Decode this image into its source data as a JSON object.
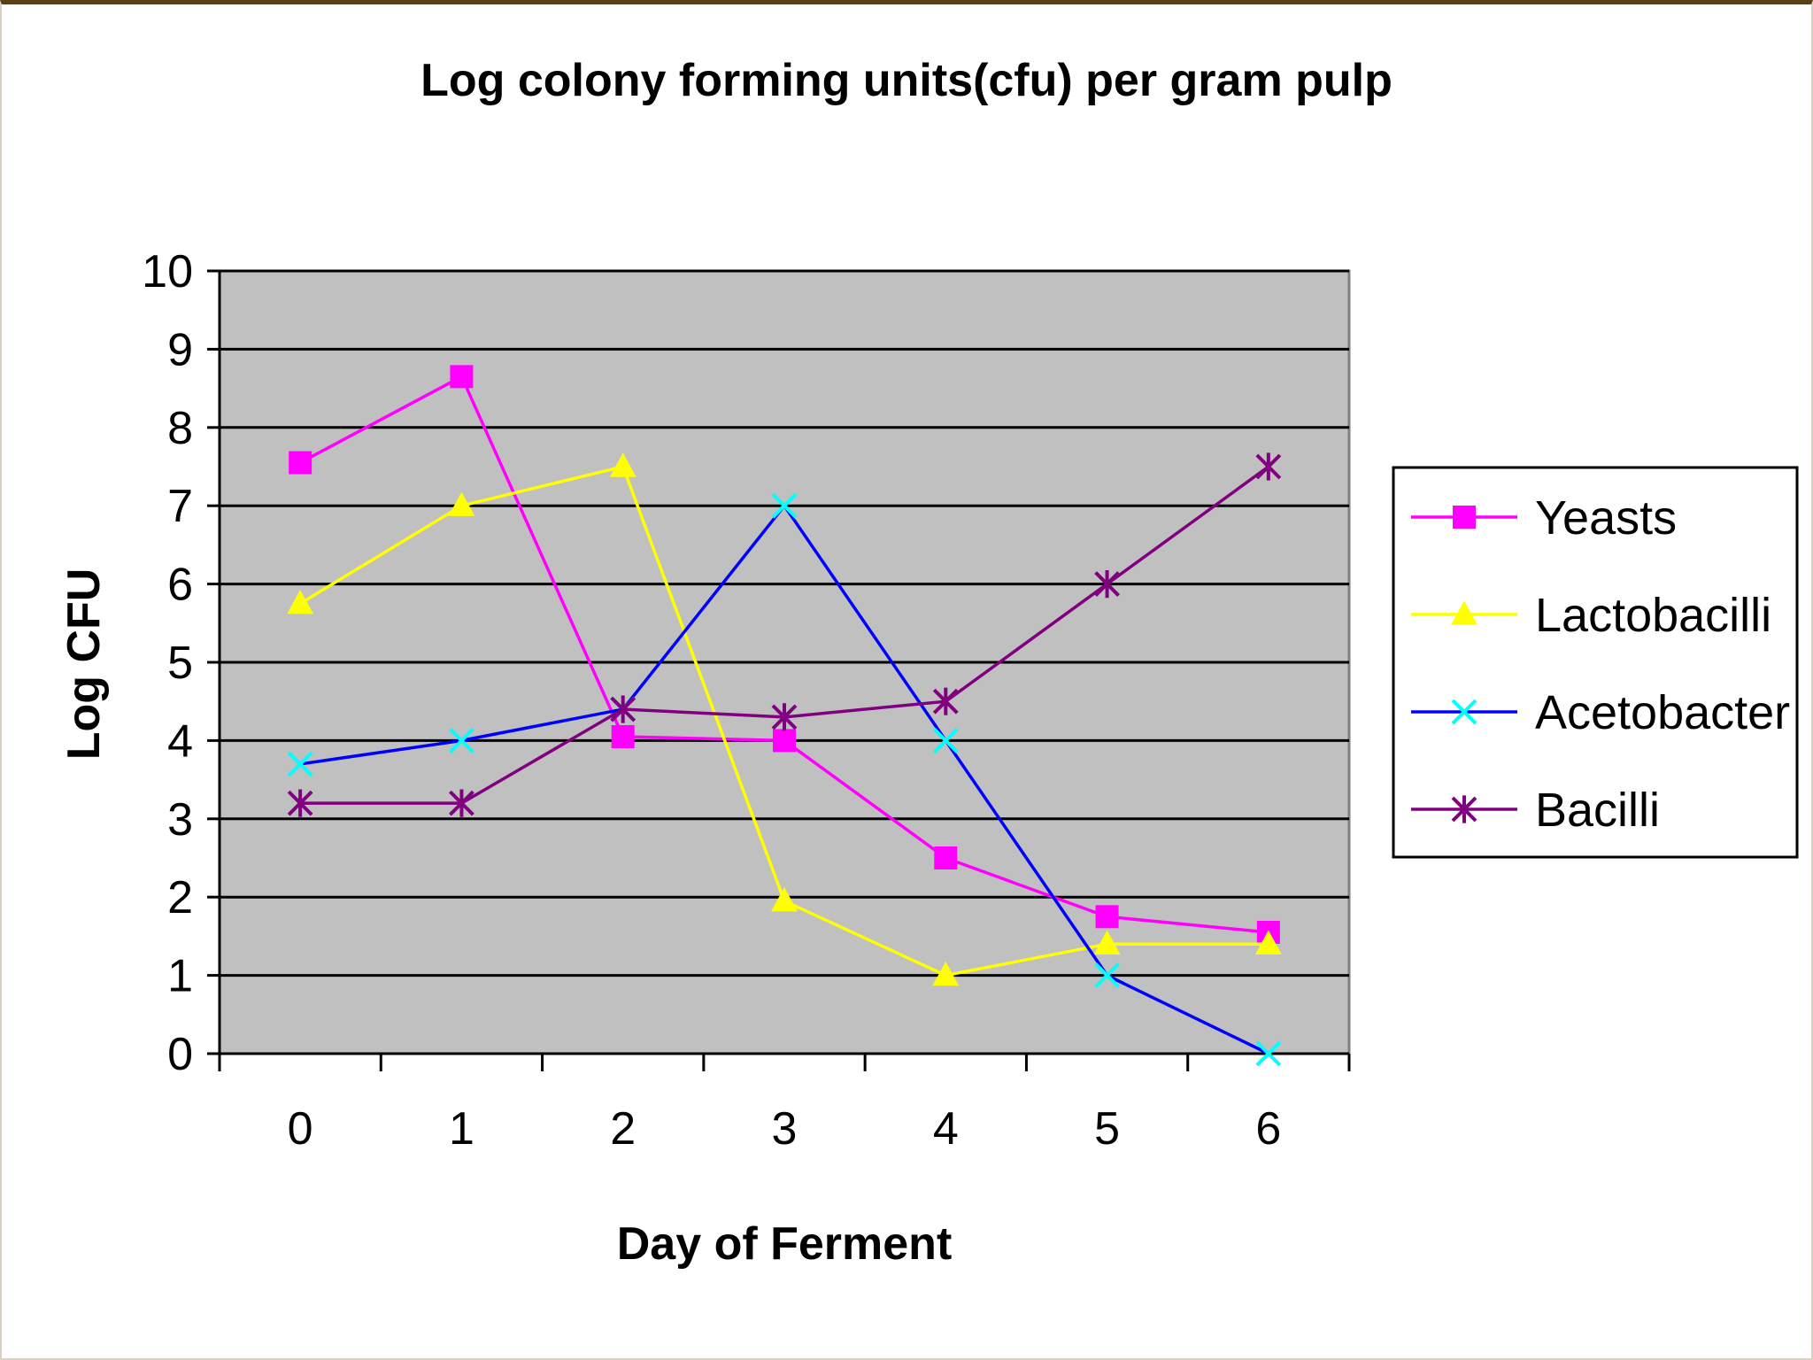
{
  "chart_data": {
    "type": "line",
    "title": "Log colony forming units(cfu) per gram pulp",
    "xlabel": "Day of Ferment",
    "ylabel": "Log CFU",
    "categories": [
      "0",
      "1",
      "2",
      "3",
      "4",
      "5",
      "6"
    ],
    "ylim": [
      0,
      10
    ],
    "yticks": [
      "0",
      "1",
      "2",
      "3",
      "4",
      "5",
      "6",
      "7",
      "8",
      "9",
      "10"
    ],
    "grid": true,
    "legend_position": "right",
    "plot_background": "#c0c0c0",
    "series": [
      {
        "name": "Yeasts",
        "color": "#ff00ff",
        "marker": "square",
        "values": [
          7.55,
          8.65,
          4.05,
          4.0,
          2.5,
          1.75,
          1.55
        ]
      },
      {
        "name": "Lactobacilli",
        "color": "#ffff00",
        "marker": "triangle",
        "values": [
          5.75,
          7.0,
          7.5,
          1.95,
          1.0,
          1.4,
          1.4
        ]
      },
      {
        "name": "Acetobacter",
        "color": "#00ffff",
        "line_color": "#0000ff",
        "marker": "x",
        "values": [
          3.7,
          4.0,
          4.4,
          7.0,
          4.0,
          1.0,
          0.0
        ]
      },
      {
        "name": "Bacilli",
        "color": "#800080",
        "marker": "star",
        "values": [
          3.2,
          3.2,
          4.4,
          4.3,
          4.5,
          6.0,
          7.5
        ]
      }
    ]
  }
}
